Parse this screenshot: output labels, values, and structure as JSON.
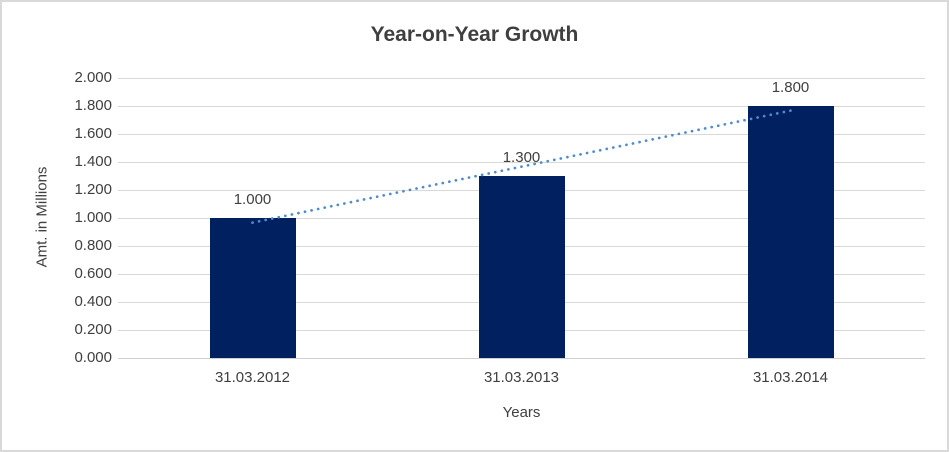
{
  "frame": {
    "background": "#ffffff",
    "border_color": "#d9d9d9"
  },
  "chart_data": {
    "type": "bar",
    "title": "Year-on-Year Growth",
    "xlabel": "Years",
    "ylabel": "Amt. in Millions",
    "categories": [
      "31.03.2012",
      "31.03.2013",
      "31.03.2014"
    ],
    "series": [
      {
        "name": "Amt. in Millions",
        "values": [
          1.0,
          1.3,
          1.8
        ]
      }
    ],
    "data_labels": [
      "1.000",
      "1.300",
      "1.800"
    ],
    "y_ticks": [
      "0.000",
      "0.200",
      "0.400",
      "0.600",
      "0.800",
      "1.000",
      "1.200",
      "1.400",
      "1.600",
      "1.800",
      "2.000"
    ],
    "ylim": [
      0,
      2
    ],
    "grid": true,
    "legend": "none",
    "bar_color": "#002060",
    "gridline_color": "#d9d9d9",
    "text_color": "#404040",
    "title_color": "#3f3f3f",
    "trendline": {
      "type": "linear",
      "style": "dotted",
      "color": "#4f8bd0"
    }
  }
}
